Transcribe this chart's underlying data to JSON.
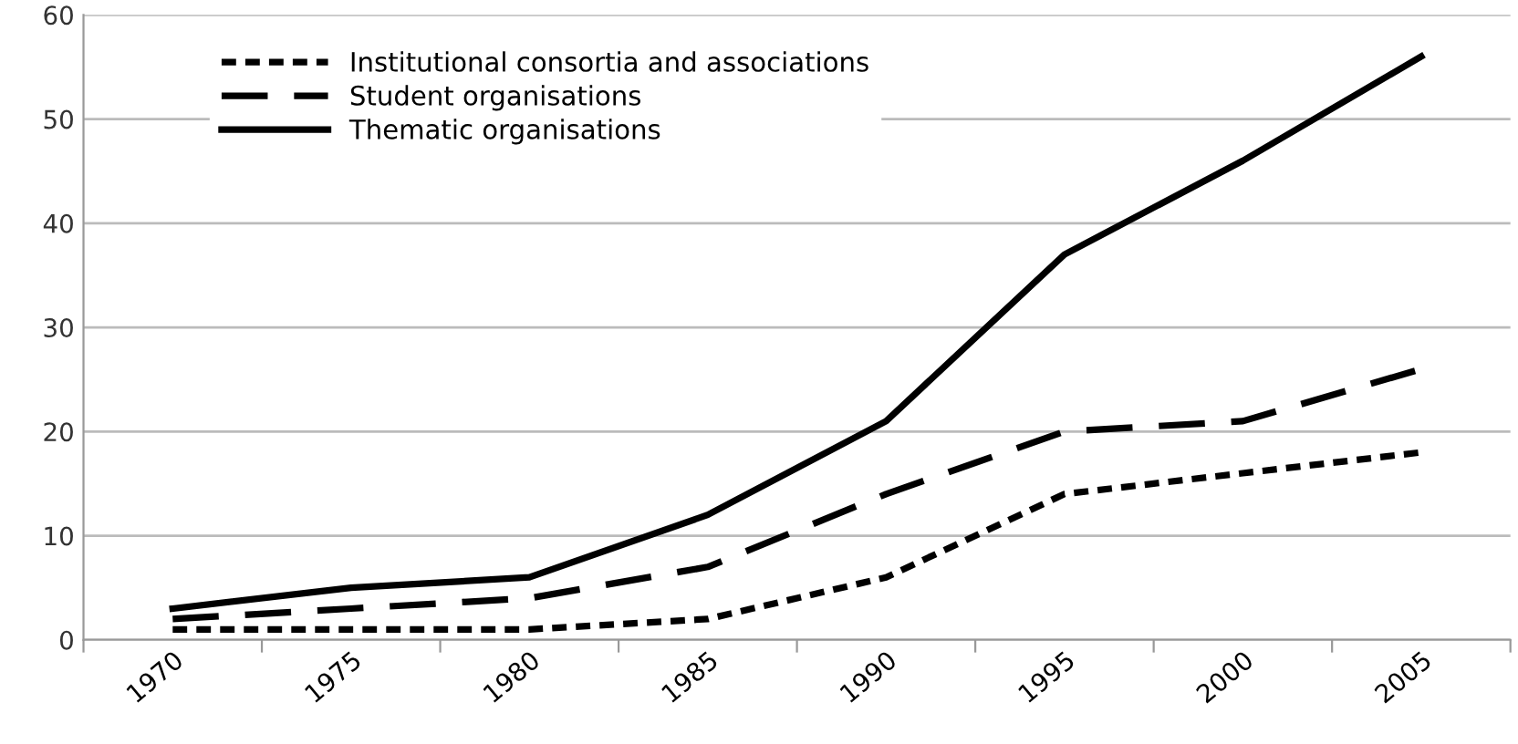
{
  "chart_data": {
    "type": "line",
    "categories": [
      "1970",
      "1975",
      "1980",
      "1985",
      "1990",
      "1995",
      "2000",
      "2005"
    ],
    "series": [
      {
        "name": "Institutional consortia and associations",
        "color": "#000000",
        "line_style": "dotted",
        "values": [
          1,
          1,
          1,
          2,
          6,
          14,
          16,
          18
        ]
      },
      {
        "name": "Student organisations",
        "color": "#000000",
        "line_style": "dashed",
        "values": [
          2,
          3,
          4,
          7,
          14,
          20,
          21,
          26
        ]
      },
      {
        "name": "Thematic organisations",
        "color": "#000000",
        "line_style": "solid",
        "values": [
          3,
          5,
          6,
          12,
          21,
          37,
          46,
          56
        ]
      }
    ],
    "ylim": [
      0,
      60
    ],
    "yticks": [
      0,
      10,
      20,
      30,
      40,
      50,
      60
    ],
    "grid": "y",
    "legend": "top left"
  }
}
